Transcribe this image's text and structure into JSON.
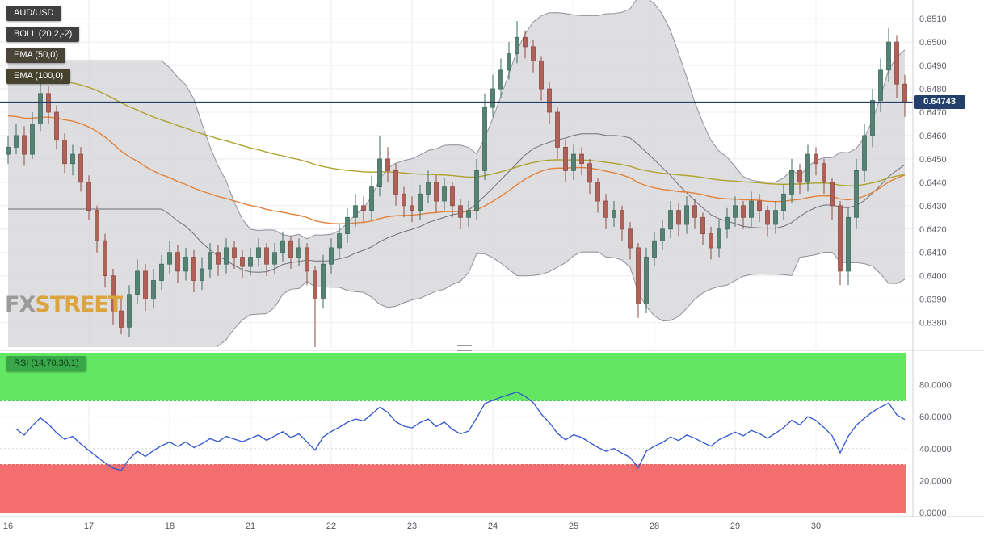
{
  "colors": {
    "grid": "#ededf3",
    "axis_text": "#5f5f6a",
    "panel_border": "#cfcfd8",
    "price_line": "#22406b",
    "badge_bg": "#22406b"
  },
  "watermark": {
    "fx": "FX",
    "street": "STREET",
    "fx_color": "#9b9b9b",
    "street_color": "#dca43d"
  },
  "price_badge": "0.64743",
  "chips": {
    "symbol": {
      "label": "AUD/USD",
      "bg": "#3f3f3f",
      "fg": "#ffffff"
    },
    "boll": {
      "label": "BOLL (20,2,-2)",
      "bg": "#3f3f3f",
      "fg": "#ffffff"
    },
    "ema50": {
      "label": "EMA (50,0)",
      "bg": "#4a4337",
      "fg": "#ffffff"
    },
    "ema100": {
      "label": "EMA (100,0)",
      "bg": "#45432e",
      "fg": "#ffffff"
    },
    "rsi": {
      "label": "RSI (14,70,30,1)",
      "bg": "#3aa64a",
      "fg": "#093b13"
    }
  },
  "chart_data": [
    {
      "type": "candlestick",
      "symbol": "AUD/USD",
      "ylim": [
        0.63695,
        0.6518
      ],
      "yticks": [
        0.651,
        0.65,
        0.649,
        0.648,
        0.647,
        0.646,
        0.645,
        0.644,
        0.643,
        0.642,
        0.641,
        0.64,
        0.639,
        0.638
      ],
      "ytick_labels": [
        "0.6510",
        "0.6500",
        "0.6490",
        "0.6480",
        "0.6470",
        "0.6460",
        "0.6450",
        "0.6440",
        "0.6430",
        "0.6420",
        "0.6410",
        "0.6400",
        "0.6390",
        "0.6380"
      ],
      "last_price": 0.64743,
      "last_price_label": "0.64743",
      "x_labels": [
        {
          "label": "16",
          "index": 0
        },
        {
          "label": "17",
          "index": 10
        },
        {
          "label": "18",
          "index": 20
        },
        {
          "label": "21",
          "index": 30
        },
        {
          "label": "22",
          "index": 40
        },
        {
          "label": "23",
          "index": 50
        },
        {
          "label": "24",
          "index": 60
        },
        {
          "label": "25",
          "index": 70
        },
        {
          "label": "28",
          "index": 80
        },
        {
          "label": "29",
          "index": 90
        },
        {
          "label": "30",
          "index": 100
        }
      ],
      "overlays": [
        {
          "name": "BOLL (20,2,-2)",
          "type": "bollinger",
          "period": 20,
          "mult": 2,
          "fill": "#d6d6d9",
          "fill_opacity": 0.8,
          "edge": "#90909a",
          "mid": "#6f6f78"
        },
        {
          "name": "EMA (50,0)",
          "type": "ema",
          "period": 50,
          "seed": 0.6469,
          "stroke": "#e2823a"
        },
        {
          "name": "EMA (100,0)",
          "type": "ema",
          "period": 100,
          "seed": 0.6487,
          "stroke": "#ada32f"
        }
      ],
      "colors": {
        "up": "#568274",
        "up_stroke": "#3c6b5e",
        "down": "#b06056",
        "down_stroke": "#8e4a42"
      },
      "candles": [
        [
          0.6452,
          0.646,
          0.6448,
          0.6455
        ],
        [
          0.6455,
          0.6465,
          0.6452,
          0.646
        ],
        [
          0.646,
          0.6464,
          0.6447,
          0.6452
        ],
        [
          0.6452,
          0.647,
          0.645,
          0.6465
        ],
        [
          0.6465,
          0.6483,
          0.6462,
          0.6478
        ],
        [
          0.6478,
          0.6481,
          0.6465,
          0.647
        ],
        [
          0.647,
          0.6473,
          0.6454,
          0.6458
        ],
        [
          0.6458,
          0.6461,
          0.6444,
          0.6448
        ],
        [
          0.6448,
          0.6456,
          0.6443,
          0.6452
        ],
        [
          0.6452,
          0.6455,
          0.6436,
          0.644
        ],
        [
          0.644,
          0.6443,
          0.6424,
          0.6428
        ],
        [
          0.6428,
          0.643,
          0.641,
          0.6415
        ],
        [
          0.6415,
          0.6418,
          0.6395,
          0.64
        ],
        [
          0.64,
          0.6403,
          0.6379,
          0.6385
        ],
        [
          0.6385,
          0.639,
          0.6375,
          0.6378
        ],
        [
          0.6378,
          0.6396,
          0.6374,
          0.6392
        ],
        [
          0.6392,
          0.6407,
          0.6388,
          0.6402
        ],
        [
          0.6402,
          0.6405,
          0.6385,
          0.639
        ],
        [
          0.639,
          0.6403,
          0.6386,
          0.6398
        ],
        [
          0.6398,
          0.6409,
          0.6394,
          0.6405
        ],
        [
          0.6405,
          0.6415,
          0.6401,
          0.641
        ],
        [
          0.641,
          0.6413,
          0.6397,
          0.6402
        ],
        [
          0.6402,
          0.6412,
          0.6398,
          0.6408
        ],
        [
          0.6408,
          0.6411,
          0.6393,
          0.6398
        ],
        [
          0.6398,
          0.6408,
          0.6394,
          0.6403
        ],
        [
          0.6403,
          0.6414,
          0.6399,
          0.641
        ],
        [
          0.641,
          0.6413,
          0.64,
          0.6405
        ],
        [
          0.6405,
          0.6416,
          0.6401,
          0.6412
        ],
        [
          0.6412,
          0.6415,
          0.6403,
          0.6408
        ],
        [
          0.6408,
          0.6411,
          0.6399,
          0.6404
        ],
        [
          0.6404,
          0.6412,
          0.64,
          0.6408
        ],
        [
          0.6408,
          0.6416,
          0.6404,
          0.6412
        ],
        [
          0.6412,
          0.6414,
          0.64,
          0.6405
        ],
        [
          0.6405,
          0.6414,
          0.6401,
          0.641
        ],
        [
          0.641,
          0.6419,
          0.6406,
          0.6415
        ],
        [
          0.6415,
          0.6417,
          0.6403,
          0.6408
        ],
        [
          0.6408,
          0.6416,
          0.6404,
          0.6412
        ],
        [
          0.6412,
          0.6414,
          0.6396,
          0.6402
        ],
        [
          0.6402,
          0.6404,
          0.6368,
          0.639
        ],
        [
          0.639,
          0.6409,
          0.6386,
          0.6405
        ],
        [
          0.6405,
          0.6416,
          0.6401,
          0.6412
        ],
        [
          0.6412,
          0.6422,
          0.6408,
          0.6418
        ],
        [
          0.6418,
          0.6429,
          0.6414,
          0.6425
        ],
        [
          0.6425,
          0.6435,
          0.6421,
          0.643
        ],
        [
          0.643,
          0.6434,
          0.6423,
          0.6428
        ],
        [
          0.6428,
          0.6443,
          0.6424,
          0.6438
        ],
        [
          0.6438,
          0.646,
          0.6434,
          0.645
        ],
        [
          0.645,
          0.6455,
          0.644,
          0.6445
        ],
        [
          0.6445,
          0.6448,
          0.643,
          0.6435
        ],
        [
          0.6435,
          0.6438,
          0.6425,
          0.643
        ],
        [
          0.643,
          0.6434,
          0.6423,
          0.6428
        ],
        [
          0.6428,
          0.6439,
          0.6424,
          0.6435
        ],
        [
          0.6435,
          0.6445,
          0.6431,
          0.644
        ],
        [
          0.644,
          0.6443,
          0.6427,
          0.6432
        ],
        [
          0.6432,
          0.6442,
          0.6428,
          0.6438
        ],
        [
          0.6438,
          0.644,
          0.6425,
          0.643
        ],
        [
          0.643,
          0.6433,
          0.642,
          0.6425
        ],
        [
          0.6425,
          0.6432,
          0.6421,
          0.6428
        ],
        [
          0.6428,
          0.645,
          0.6424,
          0.6445
        ],
        [
          0.6445,
          0.6478,
          0.6441,
          0.6472
        ],
        [
          0.6472,
          0.6486,
          0.6468,
          0.648
        ],
        [
          0.648,
          0.6493,
          0.6476,
          0.6488
        ],
        [
          0.6488,
          0.65,
          0.6484,
          0.6495
        ],
        [
          0.6495,
          0.6509,
          0.6491,
          0.6502
        ],
        [
          0.6502,
          0.6505,
          0.6493,
          0.6498
        ],
        [
          0.6498,
          0.6501,
          0.6487,
          0.6492
        ],
        [
          0.6492,
          0.6494,
          0.6475,
          0.648
        ],
        [
          0.648,
          0.6483,
          0.6465,
          0.647
        ],
        [
          0.647,
          0.6472,
          0.645,
          0.6455
        ],
        [
          0.6455,
          0.6458,
          0.644,
          0.6445
        ],
        [
          0.6445,
          0.6456,
          0.6441,
          0.6452
        ],
        [
          0.6452,
          0.6455,
          0.6443,
          0.6448
        ],
        [
          0.6448,
          0.645,
          0.6435,
          0.644
        ],
        [
          0.644,
          0.6442,
          0.6427,
          0.6432
        ],
        [
          0.6432,
          0.6435,
          0.642,
          0.6425
        ],
        [
          0.6425,
          0.6432,
          0.6421,
          0.6428
        ],
        [
          0.6428,
          0.643,
          0.6415,
          0.642
        ],
        [
          0.642,
          0.6423,
          0.6407,
          0.6412
        ],
        [
          0.6412,
          0.6414,
          0.6382,
          0.6388
        ],
        [
          0.6388,
          0.6412,
          0.6384,
          0.6408
        ],
        [
          0.6408,
          0.6419,
          0.6404,
          0.6415
        ],
        [
          0.6415,
          0.6424,
          0.6411,
          0.642
        ],
        [
          0.642,
          0.6432,
          0.6416,
          0.6428
        ],
        [
          0.6428,
          0.6431,
          0.6417,
          0.6422
        ],
        [
          0.6422,
          0.6434,
          0.6418,
          0.643
        ],
        [
          0.643,
          0.6433,
          0.642,
          0.6425
        ],
        [
          0.6425,
          0.6427,
          0.6413,
          0.6418
        ],
        [
          0.6418,
          0.6421,
          0.6407,
          0.6412
        ],
        [
          0.6412,
          0.6424,
          0.6408,
          0.642
        ],
        [
          0.642,
          0.6429,
          0.6416,
          0.6425
        ],
        [
          0.6425,
          0.6434,
          0.6421,
          0.643
        ],
        [
          0.643,
          0.6432,
          0.642,
          0.6425
        ],
        [
          0.6425,
          0.6436,
          0.6421,
          0.6432
        ],
        [
          0.6432,
          0.6435,
          0.6423,
          0.6428
        ],
        [
          0.6428,
          0.643,
          0.6417,
          0.6422
        ],
        [
          0.6422,
          0.6432,
          0.6418,
          0.6428
        ],
        [
          0.6428,
          0.6439,
          0.6424,
          0.6435
        ],
        [
          0.6435,
          0.645,
          0.6431,
          0.6445
        ],
        [
          0.6445,
          0.6448,
          0.6435,
          0.644
        ],
        [
          0.644,
          0.6456,
          0.6436,
          0.6452
        ],
        [
          0.6452,
          0.6455,
          0.6443,
          0.6448
        ],
        [
          0.6448,
          0.645,
          0.6435,
          0.644
        ],
        [
          0.644,
          0.6442,
          0.6424,
          0.643
        ],
        [
          0.643,
          0.6432,
          0.6396,
          0.6402
        ],
        [
          0.6402,
          0.6429,
          0.6396,
          0.6425
        ],
        [
          0.6425,
          0.645,
          0.642,
          0.6445
        ],
        [
          0.6445,
          0.6465,
          0.644,
          0.646
        ],
        [
          0.646,
          0.648,
          0.6455,
          0.6475
        ],
        [
          0.6475,
          0.6493,
          0.647,
          0.6488
        ],
        [
          0.6488,
          0.6506,
          0.6483,
          0.65
        ],
        [
          0.65,
          0.6503,
          0.6476,
          0.6482
        ],
        [
          0.6482,
          0.6486,
          0.6468,
          0.64743
        ]
      ]
    },
    {
      "type": "line",
      "name": "RSI (14,70,30,1)",
      "period": 14,
      "levels": {
        "overbought": 70,
        "oversold": 30
      },
      "ylim": [
        0,
        100
      ],
      "yticks": [
        80,
        60,
        40,
        20,
        0
      ],
      "ytick_labels": [
        "80.0000",
        "60.0000",
        "40.0000",
        "20.0000",
        "0.0000"
      ],
      "bands": [
        {
          "from": 70,
          "to": 100,
          "fill": "#63e763",
          "edge": "#35bd44"
        },
        {
          "from": 0,
          "to": 30,
          "fill": "#f36f6f",
          "edge": "#de5050"
        }
      ],
      "line_color": "#2f55cf"
    }
  ]
}
